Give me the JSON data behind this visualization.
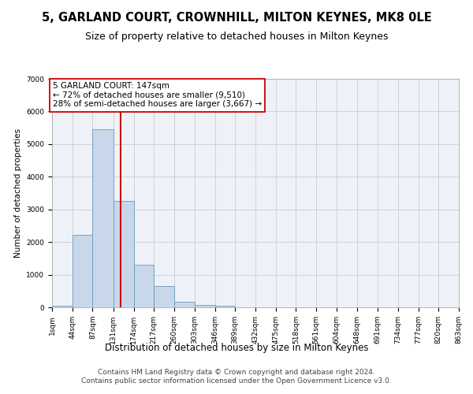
{
  "title": "5, GARLAND COURT, CROWNHILL, MILTON KEYNES, MK8 0LE",
  "subtitle": "Size of property relative to detached houses in Milton Keynes",
  "xlabel": "Distribution of detached houses by size in Milton Keynes",
  "ylabel": "Number of detached properties",
  "bar_color": "#c8d8ea",
  "bar_edge_color": "#6699bb",
  "grid_color": "#cccccc",
  "bg_color": "#eef2f8",
  "annotation_line1": "5 GARLAND COURT: 147sqm",
  "annotation_line2": "← 72% of detached houses are smaller (9,510)",
  "annotation_line3": "28% of semi-detached houses are larger (3,667) →",
  "vline_x": 147,
  "vline_color": "#cc0000",
  "ylim": [
    0,
    7000
  ],
  "yticks": [
    0,
    1000,
    2000,
    3000,
    4000,
    5000,
    6000,
    7000
  ],
  "bin_edges": [
    1,
    44,
    87,
    131,
    174,
    217,
    260,
    303,
    346,
    389,
    432,
    475,
    518,
    561,
    604,
    648,
    691,
    734,
    777,
    820,
    863
  ],
  "bar_heights": [
    55,
    2230,
    5450,
    3250,
    1310,
    640,
    175,
    82,
    45,
    4,
    2,
    0,
    0,
    0,
    0,
    0,
    0,
    0,
    0,
    0
  ],
  "footer_text": "Contains HM Land Registry data © Crown copyright and database right 2024.\nContains public sector information licensed under the Open Government Licence v3.0.",
  "title_fontsize": 10.5,
  "subtitle_fontsize": 9,
  "xlabel_fontsize": 8.5,
  "ylabel_fontsize": 7.5,
  "tick_fontsize": 6.5,
  "footer_fontsize": 6.5,
  "annot_fontsize": 7.5
}
